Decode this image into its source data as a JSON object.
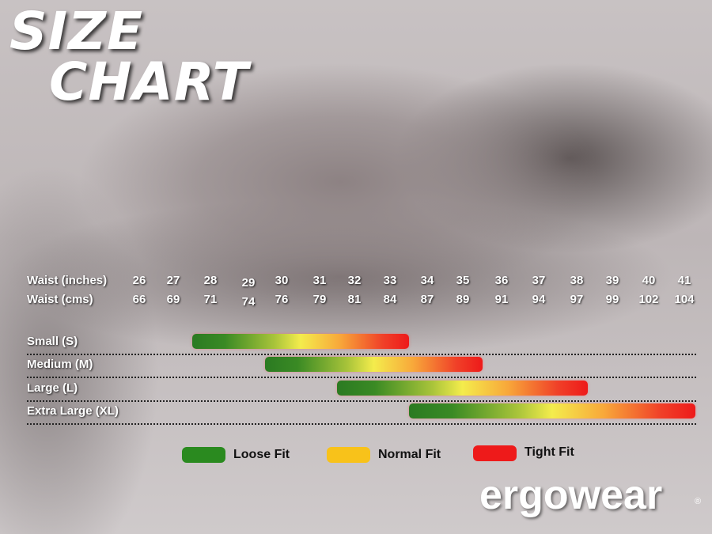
{
  "title": {
    "line1": "SIZE",
    "line2": "CHART"
  },
  "chart_data": {
    "type": "bar",
    "orientation": "horizontal-range",
    "rows": [
      {
        "label": "Waist (inches)",
        "values": [
          26,
          27,
          28,
          29,
          30,
          31,
          32,
          33,
          34,
          35,
          36,
          37,
          38,
          39,
          40,
          41
        ]
      },
      {
        "label": "Waist (cms)",
        "values": [
          66,
          69,
          71,
          74,
          76,
          79,
          81,
          84,
          87,
          89,
          91,
          94,
          97,
          99,
          102,
          104
        ]
      }
    ],
    "series": [
      {
        "name": "Small (S)",
        "from": 27.5,
        "to": 33.5
      },
      {
        "name": "Medium (M)",
        "from": 29.5,
        "to": 35.5
      },
      {
        "name": "Large (L)",
        "from": 31.5,
        "to": 38.3
      },
      {
        "name": "Extra Large (XL)",
        "from": 33.5,
        "to": 41.3
      }
    ],
    "unit": "inches",
    "gradient_colors": [
      "#2b7a22",
      "#f4ec4c",
      "#ee1a1a"
    ],
    "legend": [
      {
        "label": "Loose Fit",
        "color": "#2a8a1f"
      },
      {
        "label": "Normal Fit",
        "color": "#f8c21a"
      },
      {
        "label": "Tight Fit",
        "color": "#ee1a1a"
      }
    ],
    "legend_position": "bottom"
  },
  "brand": {
    "logo": "ergowear",
    "registered": "®"
  }
}
